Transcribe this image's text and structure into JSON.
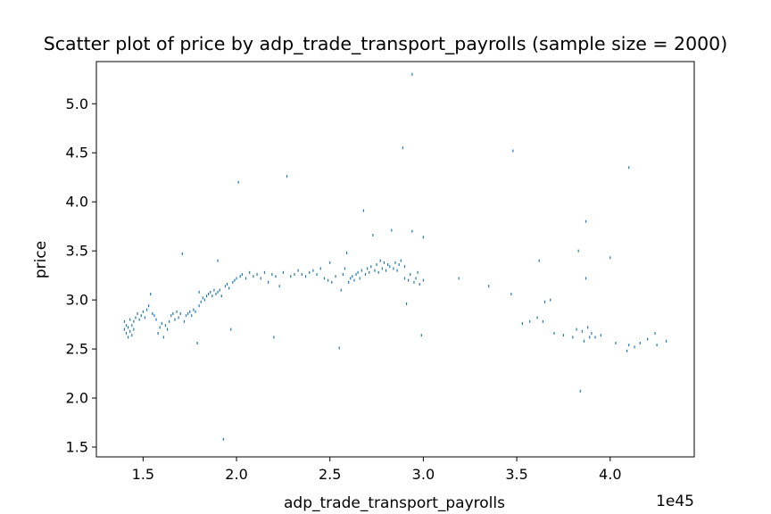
{
  "chart_data": {
    "type": "scatter",
    "title": "Scatter plot of price by adp_trade_transport_payrolls (sample size = 2000)",
    "xlabel": "adp_trade_transport_payrolls",
    "ylabel": "price",
    "x_offset_label": "1e45",
    "xlim": [
      1.25,
      4.45
    ],
    "ylim": [
      1.4,
      5.43
    ],
    "xticks": [
      1.5,
      2.0,
      2.5,
      3.0,
      3.5,
      4.0
    ],
    "xtick_labels": [
      "1.5",
      "2.0",
      "2.5",
      "3.0",
      "3.5",
      "4.0"
    ],
    "yticks": [
      1.5,
      2.0,
      2.5,
      3.0,
      3.5,
      4.0,
      4.5,
      5.0
    ],
    "ytick_labels": [
      "1.5",
      "2.0",
      "2.5",
      "3.0",
      "3.5",
      "4.0",
      "4.5",
      "5.0"
    ],
    "marker_color": "#1f77b4",
    "grid": false,
    "points": [
      [
        1.4,
        2.7
      ],
      [
        1.4,
        2.78
      ],
      [
        1.41,
        2.66
      ],
      [
        1.41,
        2.74
      ],
      [
        1.42,
        2.62
      ],
      [
        1.42,
        2.72
      ],
      [
        1.43,
        2.68
      ],
      [
        1.43,
        2.8
      ],
      [
        1.44,
        2.64
      ],
      [
        1.44,
        2.74
      ],
      [
        1.45,
        2.78
      ],
      [
        1.45,
        2.7
      ],
      [
        1.46,
        2.82
      ],
      [
        1.47,
        2.86
      ],
      [
        1.48,
        2.8
      ],
      [
        1.49,
        2.84
      ],
      [
        1.5,
        2.88
      ],
      [
        1.51,
        2.82
      ],
      [
        1.52,
        2.9
      ],
      [
        1.53,
        2.94
      ],
      [
        1.54,
        3.06
      ],
      [
        1.55,
        2.86
      ],
      [
        1.56,
        2.84
      ],
      [
        1.57,
        2.8
      ],
      [
        1.58,
        2.66
      ],
      [
        1.59,
        2.72
      ],
      [
        1.6,
        2.76
      ],
      [
        1.61,
        2.62
      ],
      [
        1.62,
        2.74
      ],
      [
        1.63,
        2.7
      ],
      [
        1.64,
        2.78
      ],
      [
        1.65,
        2.84
      ],
      [
        1.66,
        2.86
      ],
      [
        1.67,
        2.8
      ],
      [
        1.68,
        2.88
      ],
      [
        1.69,
        2.82
      ],
      [
        1.7,
        2.86
      ],
      [
        1.71,
        3.47
      ],
      [
        1.72,
        2.78
      ],
      [
        1.73,
        2.84
      ],
      [
        1.74,
        2.86
      ],
      [
        1.75,
        2.88
      ],
      [
        1.76,
        2.84
      ],
      [
        1.77,
        2.9
      ],
      [
        1.78,
        2.88
      ],
      [
        1.79,
        2.56
      ],
      [
        1.8,
        2.94
      ],
      [
        1.8,
        3.08
      ],
      [
        1.81,
        2.98
      ],
      [
        1.82,
        3.02
      ],
      [
        1.83,
        3.0
      ],
      [
        1.84,
        3.04
      ],
      [
        1.85,
        3.06
      ],
      [
        1.86,
        3.08
      ],
      [
        1.87,
        3.04
      ],
      [
        1.88,
        3.1
      ],
      [
        1.89,
        3.06
      ],
      [
        1.9,
        3.08
      ],
      [
        1.9,
        3.4
      ],
      [
        1.91,
        3.1
      ],
      [
        1.92,
        3.04
      ],
      [
        1.93,
        1.58
      ],
      [
        1.94,
        3.14
      ],
      [
        1.95,
        3.16
      ],
      [
        1.96,
        3.12
      ],
      [
        1.97,
        2.7
      ],
      [
        1.98,
        3.18
      ],
      [
        1.99,
        3.2
      ],
      [
        2.0,
        3.22
      ],
      [
        2.01,
        4.2
      ],
      [
        2.02,
        3.24
      ],
      [
        2.03,
        3.26
      ],
      [
        2.05,
        3.22
      ],
      [
        2.07,
        3.28
      ],
      [
        2.09,
        3.24
      ],
      [
        2.11,
        3.26
      ],
      [
        2.13,
        3.22
      ],
      [
        2.15,
        3.28
      ],
      [
        2.17,
        3.18
      ],
      [
        2.19,
        3.26
      ],
      [
        2.2,
        2.62
      ],
      [
        2.21,
        3.24
      ],
      [
        2.23,
        3.14
      ],
      [
        2.25,
        3.28
      ],
      [
        2.27,
        4.26
      ],
      [
        2.29,
        3.24
      ],
      [
        2.31,
        3.26
      ],
      [
        2.33,
        3.3
      ],
      [
        2.35,
        3.26
      ],
      [
        2.37,
        3.24
      ],
      [
        2.39,
        3.28
      ],
      [
        2.41,
        3.3
      ],
      [
        2.43,
        3.26
      ],
      [
        2.45,
        3.32
      ],
      [
        2.47,
        3.22
      ],
      [
        2.49,
        3.2
      ],
      [
        2.5,
        3.38
      ],
      [
        2.51,
        3.18
      ],
      [
        2.53,
        3.24
      ],
      [
        2.55,
        2.51
      ],
      [
        2.56,
        3.1
      ],
      [
        2.57,
        3.26
      ],
      [
        2.58,
        3.32
      ],
      [
        2.59,
        3.48
      ],
      [
        2.6,
        3.18
      ],
      [
        2.61,
        3.22
      ],
      [
        2.62,
        3.24
      ],
      [
        2.63,
        3.2
      ],
      [
        2.64,
        3.26
      ],
      [
        2.65,
        3.28
      ],
      [
        2.66,
        3.22
      ],
      [
        2.67,
        3.3
      ],
      [
        2.68,
        3.91
      ],
      [
        2.69,
        3.26
      ],
      [
        2.7,
        3.32
      ],
      [
        2.71,
        3.28
      ],
      [
        2.72,
        3.34
      ],
      [
        2.73,
        3.66
      ],
      [
        2.74,
        3.3
      ],
      [
        2.75,
        3.36
      ],
      [
        2.76,
        3.28
      ],
      [
        2.77,
        3.4
      ],
      [
        2.78,
        3.32
      ],
      [
        2.79,
        3.38
      ],
      [
        2.8,
        3.3
      ],
      [
        2.81,
        3.36
      ],
      [
        2.82,
        3.34
      ],
      [
        2.83,
        3.71
      ],
      [
        2.84,
        3.32
      ],
      [
        2.85,
        3.38
      ],
      [
        2.86,
        3.3
      ],
      [
        2.87,
        3.36
      ],
      [
        2.88,
        3.4
      ],
      [
        2.89,
        4.55
      ],
      [
        2.9,
        3.22
      ],
      [
        2.9,
        3.34
      ],
      [
        2.91,
        2.96
      ],
      [
        2.92,
        3.2
      ],
      [
        2.93,
        3.26
      ],
      [
        2.94,
        5.3
      ],
      [
        2.94,
        3.7
      ],
      [
        2.95,
        3.18
      ],
      [
        2.96,
        3.22
      ],
      [
        2.97,
        3.28
      ],
      [
        2.98,
        3.16
      ],
      [
        2.99,
        2.64
      ],
      [
        3.0,
        3.2
      ],
      [
        3.0,
        3.64
      ],
      [
        3.19,
        3.22
      ],
      [
        3.35,
        3.14
      ],
      [
        3.47,
        3.06
      ],
      [
        3.48,
        4.52
      ],
      [
        3.53,
        2.76
      ],
      [
        3.57,
        2.78
      ],
      [
        3.61,
        2.82
      ],
      [
        3.62,
        3.4
      ],
      [
        3.64,
        2.78
      ],
      [
        3.65,
        2.98
      ],
      [
        3.68,
        3.0
      ],
      [
        3.7,
        2.66
      ],
      [
        3.75,
        2.64
      ],
      [
        3.8,
        2.62
      ],
      [
        3.82,
        2.7
      ],
      [
        3.83,
        3.5
      ],
      [
        3.84,
        2.07
      ],
      [
        3.85,
        2.68
      ],
      [
        3.86,
        2.58
      ],
      [
        3.87,
        3.8
      ],
      [
        3.87,
        3.22
      ],
      [
        3.88,
        2.72
      ],
      [
        3.89,
        2.62
      ],
      [
        3.9,
        2.66
      ],
      [
        3.92,
        2.62
      ],
      [
        3.95,
        2.64
      ],
      [
        4.0,
        3.43
      ],
      [
        4.03,
        2.56
      ],
      [
        4.09,
        2.48
      ],
      [
        4.1,
        2.54
      ],
      [
        4.1,
        4.35
      ],
      [
        4.13,
        2.52
      ],
      [
        4.16,
        2.56
      ],
      [
        4.2,
        2.6
      ],
      [
        4.24,
        2.66
      ],
      [
        4.25,
        2.54
      ],
      [
        4.3,
        2.58
      ]
    ]
  }
}
